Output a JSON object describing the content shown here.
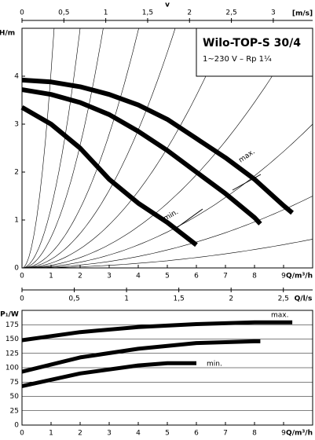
{
  "chart_data": [
    {
      "type": "line",
      "title": "Wilo-TOP-S 30/4",
      "subtitle": "1~230 V – Rp 1¼",
      "xlabel": "Q/m³/h",
      "ylabel": "H/m",
      "x2label": "v",
      "x2unit": "[m/s]",
      "xlim": [
        0,
        10
      ],
      "xticks": [
        0,
        1,
        2,
        3,
        4,
        5,
        6,
        7,
        8,
        9
      ],
      "ylim": [
        0,
        5
      ],
      "yticks": [
        0,
        1,
        2,
        3,
        4
      ],
      "x2lim": [
        0,
        3.47
      ],
      "x2ticks": [
        0,
        {
          "value": 0.5,
          "label": "0,5"
        },
        1,
        {
          "value": 1.5,
          "label": "1,5"
        },
        2,
        {
          "value": 2.5,
          "label": "2,5"
        },
        3
      ],
      "grid": false,
      "system_curves": [
        4.1,
        1.25,
        0.64,
        0.31,
        0.18,
        0.1,
        0.054,
        0.03,
        0.015,
        0.006
      ],
      "series": [
        {
          "name": "max.",
          "color": "#000000",
          "x": [
            0,
            1,
            2,
            3,
            4,
            5,
            6,
            7,
            8,
            9,
            9.3
          ],
          "values": [
            3.92,
            3.88,
            3.78,
            3.62,
            3.4,
            3.1,
            2.7,
            2.3,
            1.85,
            1.3,
            1.15
          ]
        },
        {
          "name": null,
          "color": "#000000",
          "x": [
            0,
            1,
            2,
            3,
            4,
            5,
            6,
            7,
            8,
            8.2
          ],
          "values": [
            3.72,
            3.62,
            3.45,
            3.2,
            2.85,
            2.45,
            2.0,
            1.55,
            1.05,
            0.92
          ]
        },
        {
          "name": "min.",
          "color": "#000000",
          "x": [
            0,
            1,
            2,
            3,
            4,
            5,
            6
          ],
          "values": [
            3.35,
            3.0,
            2.5,
            1.85,
            1.35,
            0.95,
            0.48
          ]
        }
      ]
    },
    {
      "type": "line",
      "xlabel": "Q/m³/h",
      "ylabel": "P₁/W",
      "x2label": "Q/l/s",
      "xlim": [
        0,
        10
      ],
      "xticks": [
        0,
        1,
        2,
        3,
        4,
        5,
        6,
        7,
        8,
        9
      ],
      "ylim": [
        0,
        200
      ],
      "yticks": [
        0,
        25,
        50,
        75,
        100,
        125,
        150,
        175
      ],
      "x2lim": [
        0,
        2.78
      ],
      "x2ticks": [
        0,
        {
          "value": 0.5,
          "label": "0,5"
        },
        1,
        {
          "value": 1.5,
          "label": "1,5"
        },
        2,
        {
          "value": 2.5,
          "label": "2,5"
        }
      ],
      "grid": true,
      "series": [
        {
          "name": "max.",
          "color": "#000000",
          "x": [
            0,
            2,
            4,
            6,
            8,
            9.3
          ],
          "values": [
            148,
            162,
            171,
            176,
            179,
            179
          ]
        },
        {
          "name": null,
          "color": "#000000",
          "x": [
            0,
            2,
            4,
            6,
            8,
            8.2
          ],
          "values": [
            93,
            118,
            133,
            143,
            146,
            146
          ]
        },
        {
          "name": "min.",
          "color": "#000000",
          "x": [
            0,
            2,
            4,
            5,
            6
          ],
          "values": [
            68,
            90,
            104,
            108,
            108
          ]
        }
      ]
    }
  ]
}
